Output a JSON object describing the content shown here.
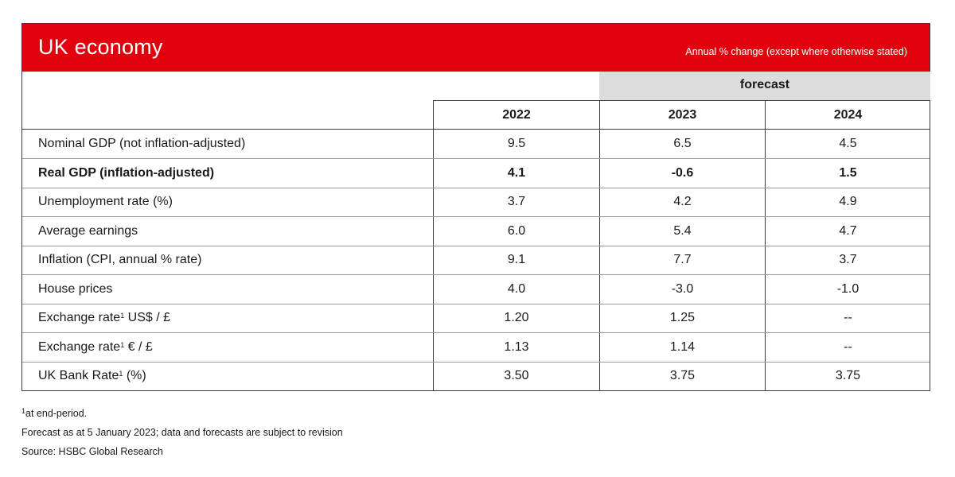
{
  "header": {
    "title": "UK economy",
    "subtitle": "Annual % change (except where otherwise stated)",
    "accent_color": "#e2000f"
  },
  "forecast_label": "forecast",
  "years": [
    "2022",
    "2023",
    "2024"
  ],
  "rows": [
    {
      "label": "Nominal GDP (not inflation-adjusted)",
      "sup": "",
      "suffix": "",
      "values": [
        "9.5",
        "6.5",
        "4.5"
      ],
      "bold": false
    },
    {
      "label": "Real GDP (inflation-adjusted)",
      "sup": "",
      "suffix": "",
      "values": [
        "4.1",
        "-0.6",
        "1.5"
      ],
      "bold": true
    },
    {
      "label": "Unemployment rate (%)",
      "sup": "",
      "suffix": "",
      "values": [
        "3.7",
        "4.2",
        "4.9"
      ],
      "bold": false
    },
    {
      "label": "Average earnings",
      "sup": "",
      "suffix": "",
      "values": [
        "6.0",
        "5.4",
        "4.7"
      ],
      "bold": false
    },
    {
      "label": "Inflation (CPI, annual % rate)",
      "sup": "",
      "suffix": "",
      "values": [
        "9.1",
        "7.7",
        "3.7"
      ],
      "bold": false
    },
    {
      "label": "House prices",
      "sup": "",
      "suffix": "",
      "values": [
        "4.0",
        "-3.0",
        "-1.0"
      ],
      "bold": false
    },
    {
      "label": "Exchange rate",
      "sup": "1",
      "suffix": " US$ / £",
      "values": [
        "1.20",
        "1.25",
        "--"
      ],
      "bold": false
    },
    {
      "label": "Exchange rate",
      "sup": "1",
      "suffix": " € / £",
      "values": [
        "1.13",
        "1.14",
        "--"
      ],
      "bold": false
    },
    {
      "label": "UK Bank Rate",
      "sup": "1",
      "suffix": " (%)",
      "values": [
        "3.50",
        "3.75",
        "3.75"
      ],
      "bold": false
    }
  ],
  "footnotes": {
    "note_sup": "1",
    "note_text": "at end-period.",
    "forecast_note": "Forecast as at 5 January 2023; data and forecasts are subject to revision",
    "source": "Source: HSBC Global Research"
  }
}
